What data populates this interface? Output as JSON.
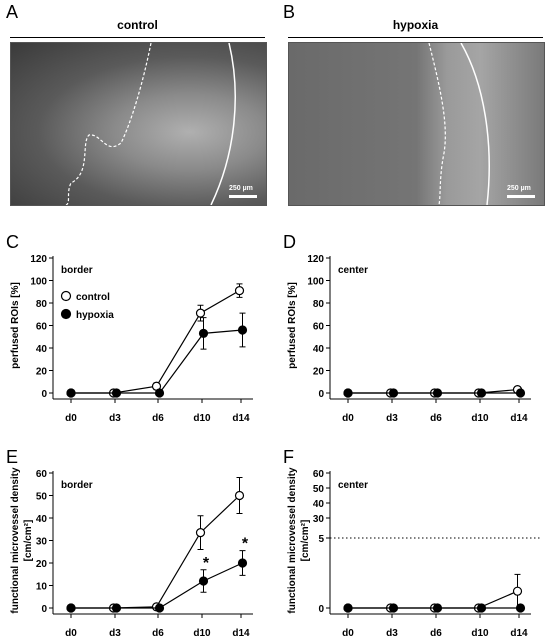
{
  "panels": {
    "A": {
      "letter": "A",
      "title": "control",
      "scale": "250 µm"
    },
    "B": {
      "letter": "B",
      "title": "hypoxia",
      "scale": "250 µm"
    }
  },
  "chart_data": [
    {
      "panel": "C",
      "type": "line",
      "region": "border",
      "ylabel": "perfused ROIs [%]",
      "categories": [
        "d0",
        "d3",
        "d6",
        "d10",
        "d14"
      ],
      "yticks": [
        "0",
        "20",
        "40",
        "60",
        "80",
        "100",
        "120"
      ],
      "ylim": [
        0,
        120
      ],
      "legend": {
        "placement": "upper-left"
      },
      "series": [
        {
          "name": "control",
          "marker": "open",
          "values": [
            0,
            0,
            6,
            71,
            91
          ],
          "errors": [
            0,
            0,
            3,
            7,
            6
          ]
        },
        {
          "name": "hypoxia",
          "marker": "filled",
          "values": [
            0,
            0,
            0,
            53,
            56
          ],
          "errors": [
            0,
            0,
            0,
            14,
            15
          ]
        }
      ]
    },
    {
      "panel": "D",
      "type": "line",
      "region": "center",
      "ylabel": "perfused ROIs [%]",
      "categories": [
        "d0",
        "d3",
        "d6",
        "d10",
        "d14"
      ],
      "yticks": [
        "0",
        "20",
        "40",
        "60",
        "80",
        "100",
        "120"
      ],
      "ylim": [
        0,
        120
      ],
      "series": [
        {
          "marker": "open",
          "values": [
            0,
            0,
            0,
            0,
            3
          ],
          "errors": [
            0,
            0,
            0,
            0,
            0
          ]
        },
        {
          "marker": "filled",
          "values": [
            0,
            0,
            0,
            0,
            0
          ],
          "errors": [
            0,
            0,
            0,
            0,
            0
          ]
        }
      ]
    },
    {
      "panel": "E",
      "type": "line",
      "region": "border",
      "ylabel": "functional microvessel density",
      "yunit": "[cm/cm²]",
      "categories": [
        "d0",
        "d3",
        "d6",
        "d10",
        "d14"
      ],
      "yticks": [
        "0",
        "10",
        "20",
        "30",
        "40",
        "50",
        "60"
      ],
      "ylim": [
        0,
        60
      ],
      "annotations": [
        {
          "text": "*",
          "category": "d10"
        },
        {
          "text": "*",
          "category": "d14"
        }
      ],
      "series": [
        {
          "marker": "open",
          "values": [
            0,
            0,
            0.5,
            33.5,
            50
          ],
          "errors": [
            0,
            0,
            0.5,
            7.5,
            8
          ]
        },
        {
          "marker": "filled",
          "values": [
            0,
            0,
            0,
            12,
            20
          ],
          "errors": [
            0,
            0,
            0,
            5,
            5.5
          ]
        }
      ]
    },
    {
      "panel": "F",
      "type": "line",
      "region": "center",
      "ylabel": "functional microvessel density",
      "yunit": "[cm/cm²]",
      "categories": [
        "d0",
        "d3",
        "d6",
        "d10",
        "d14"
      ],
      "yticks": [
        "0",
        "5",
        "30",
        "40",
        "50",
        "60"
      ],
      "ylim": [
        0,
        60
      ],
      "axis_break": "dotted line at 5",
      "series": [
        {
          "marker": "open",
          "values": [
            0,
            0,
            0,
            0,
            1.2
          ],
          "errors": [
            0,
            0,
            0,
            0,
            1.2
          ]
        },
        {
          "marker": "filled",
          "values": [
            0,
            0,
            0,
            0,
            0
          ],
          "errors": [
            0,
            0,
            0,
            0,
            0
          ]
        }
      ]
    }
  ]
}
